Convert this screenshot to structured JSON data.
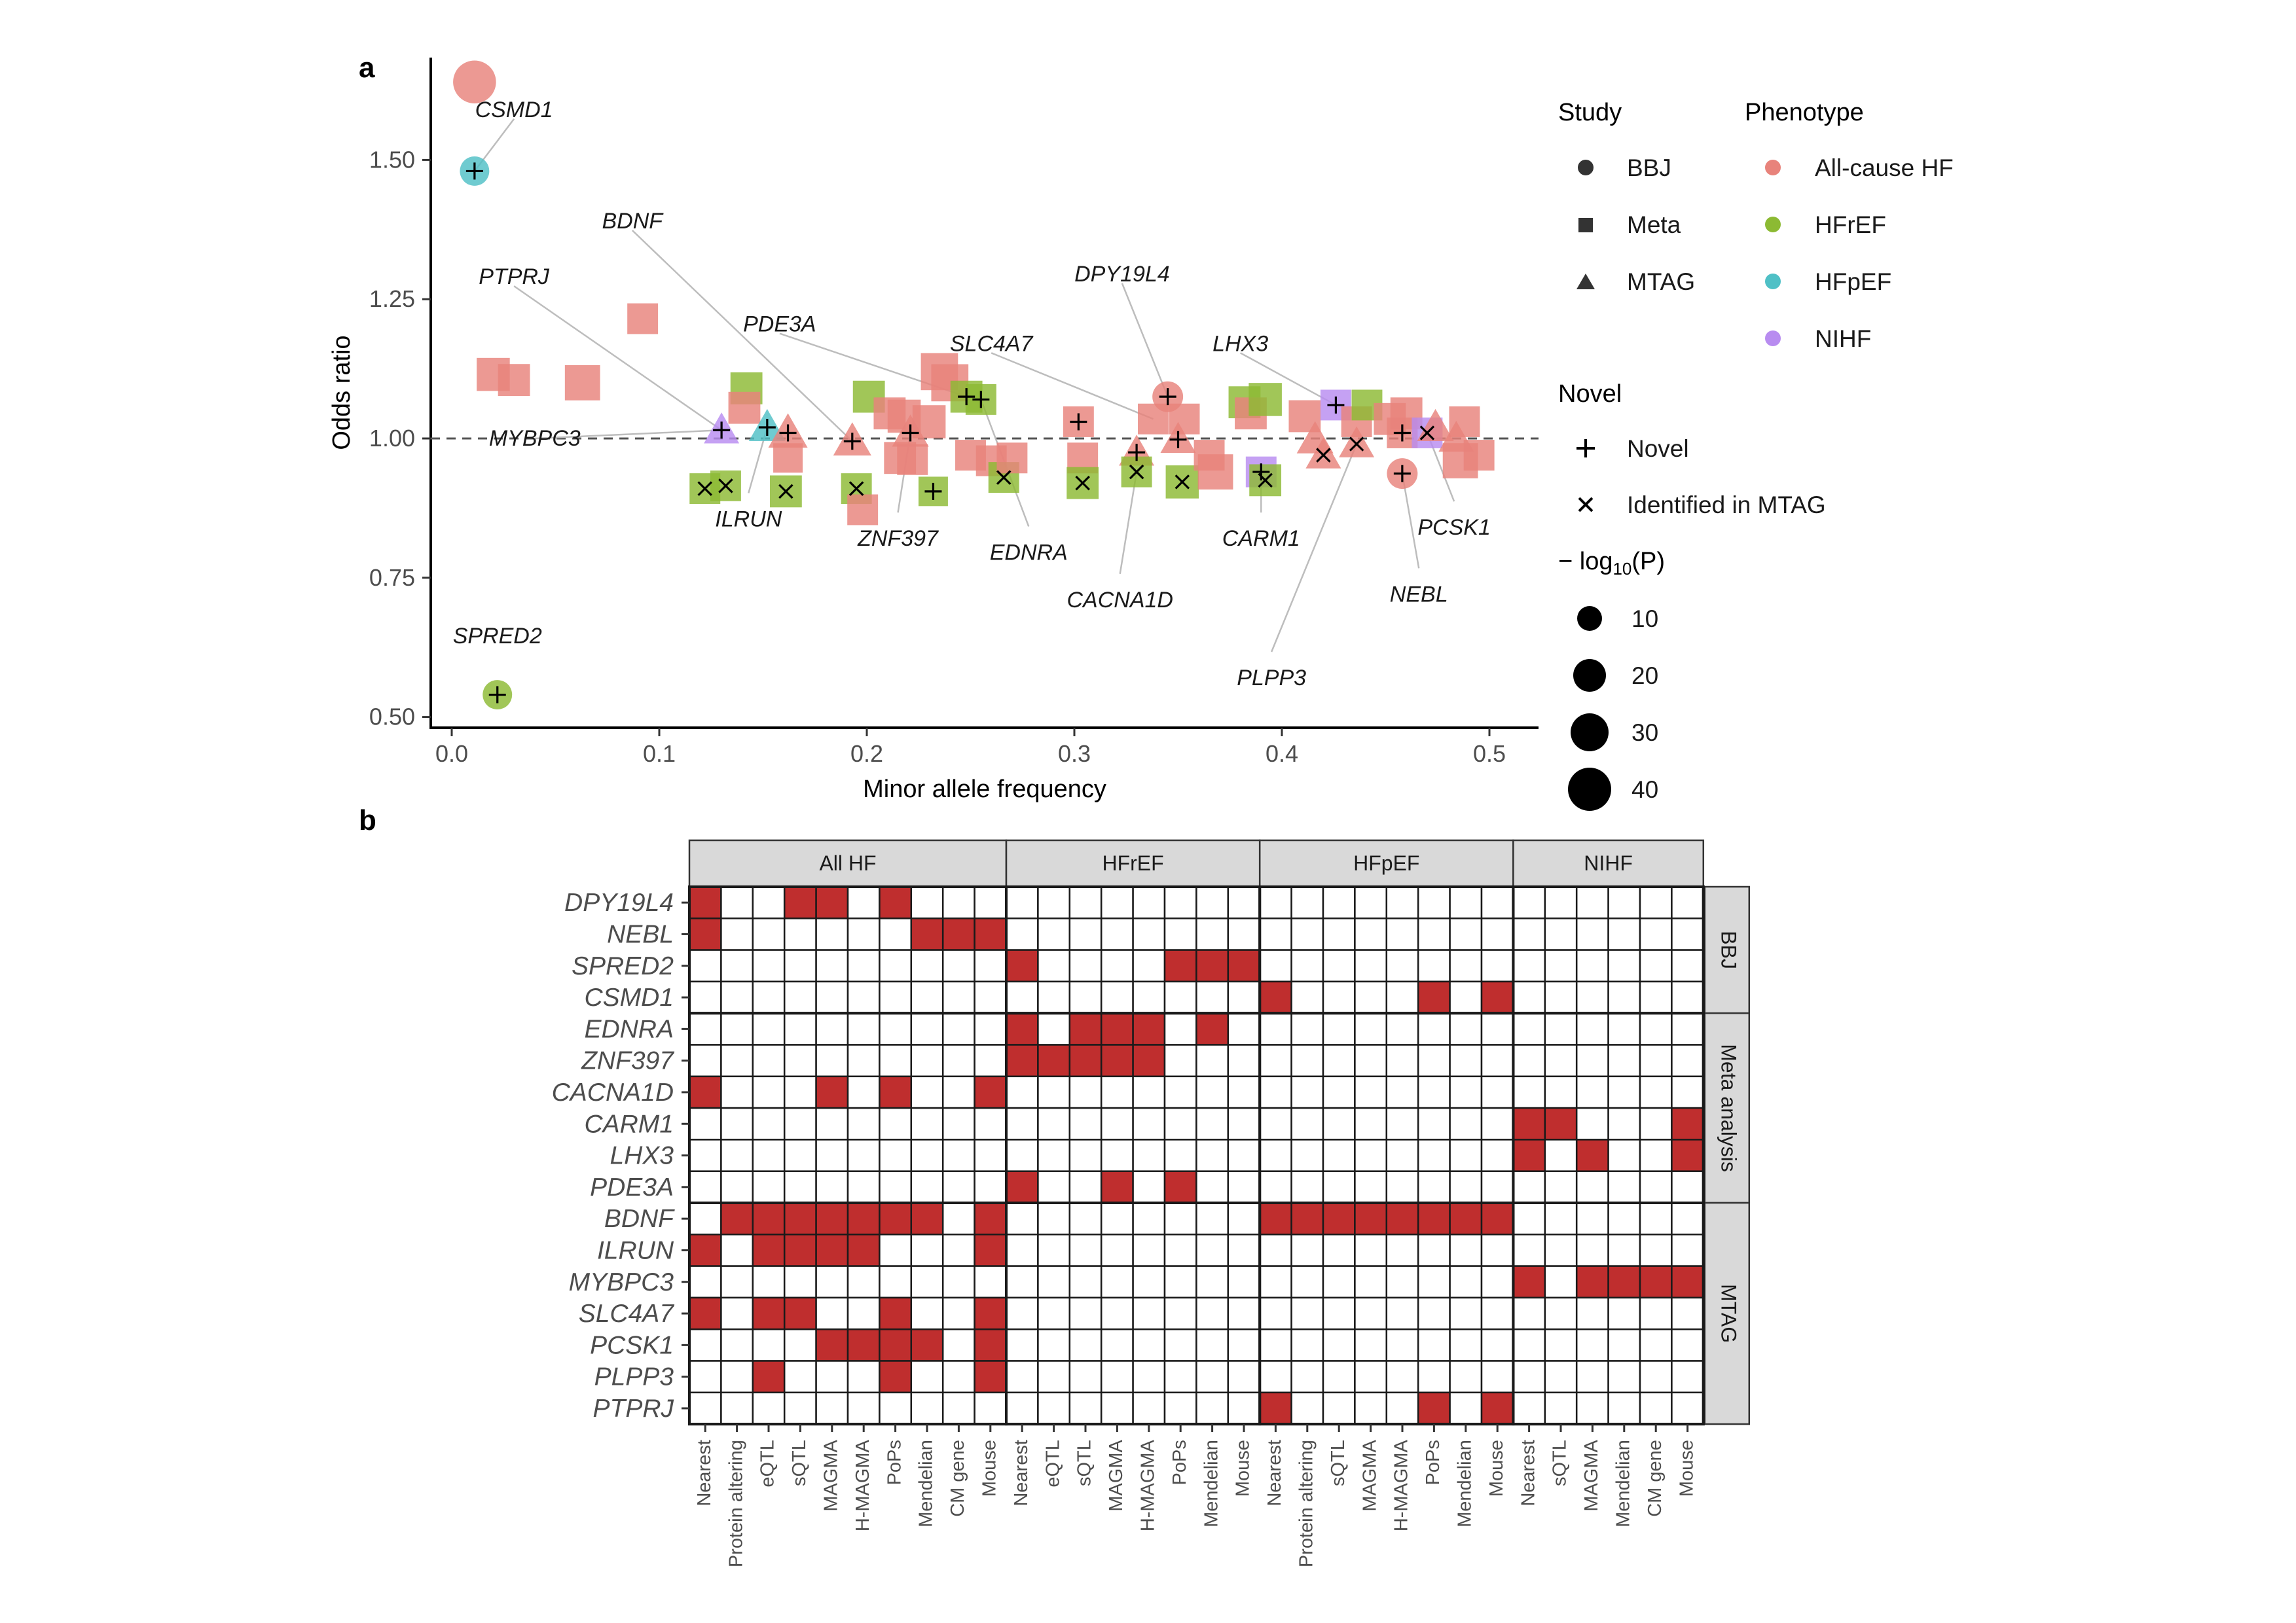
{
  "colors": {
    "all_cause_hf": "#e8837b",
    "hfref": "#8cba33",
    "hfpef": "#4fc0c6",
    "nihf": "#b88cf0",
    "heat_on": "#bf2e2e",
    "strip_bg": "#d9d9d9"
  },
  "panel_a": {
    "label": "a",
    "chart_data": {
      "type": "scatter",
      "xlabel": "Minor allele frequency",
      "ylabel": "Odds ratio",
      "xlim": [
        -0.01,
        0.52
      ],
      "ylim": [
        0.48,
        1.68
      ],
      "xticks": [
        "0.0",
        "0.1",
        "0.2",
        "0.3",
        "0.4",
        "0.5"
      ],
      "yticks": [
        "0.50",
        "0.75",
        "1.00",
        "1.25",
        "1.50"
      ],
      "reference_line": 1.0,
      "grid": false,
      "legend_position": "right",
      "points": [
        {
          "x": 0.011,
          "y": 1.64,
          "study": "BBJ",
          "ph": "All-cause HF",
          "p": 40
        },
        {
          "x": 0.011,
          "y": 1.48,
          "study": "BBJ",
          "ph": "HFpEF",
          "p": 12,
          "mark": "plus",
          "gene": "CSMD1"
        },
        {
          "x": 0.022,
          "y": 0.54,
          "study": "BBJ",
          "ph": "HFrEF",
          "p": 12,
          "mark": "plus",
          "gene": "SPRED2"
        },
        {
          "x": 0.02,
          "y": 1.115,
          "study": "Meta",
          "ph": "All-cause HF",
          "p": 18
        },
        {
          "x": 0.03,
          "y": 1.105,
          "study": "Meta",
          "ph": "All-cause HF",
          "p": 16
        },
        {
          "x": 0.063,
          "y": 1.1,
          "study": "Meta",
          "ph": "All-cause HF",
          "p": 22
        },
        {
          "x": 0.092,
          "y": 1.215,
          "study": "Meta",
          "ph": "All-cause HF",
          "p": 14
        },
        {
          "x": 0.13,
          "y": 1.015,
          "study": "MTAG",
          "ph": "NIHF",
          "p": 14,
          "mark": "plus"
        },
        {
          "x": 0.122,
          "y": 0.91,
          "study": "Meta",
          "ph": "HFrEF",
          "p": 14,
          "mark": "cross"
        },
        {
          "x": 0.132,
          "y": 0.915,
          "study": "Meta",
          "ph": "HFrEF",
          "p": 14,
          "mark": "cross"
        },
        {
          "x": 0.142,
          "y": 1.09,
          "study": "Meta",
          "ph": "HFrEF",
          "p": 16
        },
        {
          "x": 0.141,
          "y": 1.055,
          "study": "Meta",
          "ph": "All-cause HF",
          "p": 16
        },
        {
          "x": 0.152,
          "y": 1.02,
          "study": "MTAG",
          "ph": "HFpEF",
          "p": 16,
          "mark": "plus"
        },
        {
          "x": 0.162,
          "y": 1.01,
          "study": "MTAG",
          "ph": "All-cause HF",
          "p": 20,
          "mark": "plus"
        },
        {
          "x": 0.161,
          "y": 0.905,
          "study": "Meta",
          "ph": "HFrEF",
          "p": 16,
          "mark": "cross"
        },
        {
          "x": 0.162,
          "y": 0.965,
          "study": "Meta",
          "ph": "All-cause HF",
          "p": 12
        },
        {
          "x": 0.193,
          "y": 0.995,
          "study": "MTAG",
          "ph": "All-cause HF",
          "p": 18,
          "mark": "plus"
        },
        {
          "x": 0.195,
          "y": 0.91,
          "study": "Meta",
          "ph": "HFrEF",
          "p": 14,
          "mark": "cross"
        },
        {
          "x": 0.198,
          "y": 0.872,
          "study": "Meta",
          "ph": "All-cause HF",
          "p": 14
        },
        {
          "x": 0.201,
          "y": 1.075,
          "study": "Meta",
          "ph": "HFrEF",
          "p": 16
        },
        {
          "x": 0.211,
          "y": 1.045,
          "study": "Meta",
          "ph": "All-cause HF",
          "p": 16
        },
        {
          "x": 0.218,
          "y": 1.04,
          "study": "Meta",
          "ph": "All-cause HF",
          "p": 18
        },
        {
          "x": 0.221,
          "y": 1.01,
          "study": "MTAG",
          "ph": "All-cause HF",
          "p": 16,
          "mark": "plus"
        },
        {
          "x": 0.216,
          "y": 0.965,
          "study": "Meta",
          "ph": "All-cause HF",
          "p": 16
        },
        {
          "x": 0.222,
          "y": 0.962,
          "study": "Meta",
          "ph": "All-cause HF",
          "p": 14
        },
        {
          "x": 0.23,
          "y": 1.03,
          "study": "Meta",
          "ph": "All-cause HF",
          "p": 18
        },
        {
          "x": 0.235,
          "y": 1.12,
          "study": "Meta",
          "ph": "All-cause HF",
          "p": 26
        },
        {
          "x": 0.24,
          "y": 1.1,
          "study": "Meta",
          "ph": "All-cause HF",
          "p": 26
        },
        {
          "x": 0.232,
          "y": 0.905,
          "study": "Meta",
          "ph": "HFrEF",
          "p": 12,
          "mark": "plus"
        },
        {
          "x": 0.248,
          "y": 1.075,
          "study": "Meta",
          "ph": "HFrEF",
          "p": 16,
          "mark": "plus"
        },
        {
          "x": 0.255,
          "y": 1.07,
          "study": "Meta",
          "ph": "HFrEF",
          "p": 14,
          "mark": "plus"
        },
        {
          "x": 0.25,
          "y": 0.97,
          "study": "Meta",
          "ph": "All-cause HF",
          "p": 14
        },
        {
          "x": 0.26,
          "y": 0.96,
          "study": "Meta",
          "ph": "All-cause HF",
          "p": 14
        },
        {
          "x": 0.266,
          "y": 0.93,
          "study": "Meta",
          "ph": "HFrEF",
          "p": 14,
          "mark": "cross"
        },
        {
          "x": 0.27,
          "y": 0.965,
          "study": "Meta",
          "ph": "All-cause HF",
          "p": 14
        },
        {
          "x": 0.302,
          "y": 1.03,
          "study": "Meta",
          "ph": "All-cause HF",
          "p": 14,
          "mark": "plus"
        },
        {
          "x": 0.304,
          "y": 0.965,
          "study": "Meta",
          "ph": "All-cause HF",
          "p": 14
        },
        {
          "x": 0.304,
          "y": 0.92,
          "study": "Meta",
          "ph": "HFrEF",
          "p": 16,
          "mark": "cross"
        },
        {
          "x": 0.33,
          "y": 0.975,
          "study": "MTAG",
          "ph": "All-cause HF",
          "p": 14,
          "mark": "plus"
        },
        {
          "x": 0.33,
          "y": 0.94,
          "study": "Meta",
          "ph": "HFrEF",
          "p": 14,
          "mark": "cross"
        },
        {
          "x": 0.338,
          "y": 1.035,
          "study": "Meta",
          "ph": "All-cause HF",
          "p": 14
        },
        {
          "x": 0.345,
          "y": 1.075,
          "study": "BBJ",
          "ph": "All-cause HF",
          "p": 14,
          "mark": "plus"
        },
        {
          "x": 0.35,
          "y": 0.998,
          "study": "MTAG",
          "ph": "All-cause HF",
          "p": 14,
          "mark": "plus"
        },
        {
          "x": 0.352,
          "y": 0.922,
          "study": "Meta",
          "ph": "HFrEF",
          "p": 18,
          "mark": "cross"
        },
        {
          "x": 0.353,
          "y": 1.035,
          "study": "Meta",
          "ph": "All-cause HF",
          "p": 14
        },
        {
          "x": 0.365,
          "y": 0.97,
          "study": "Meta",
          "ph": "All-cause HF",
          "p": 14
        },
        {
          "x": 0.368,
          "y": 0.94,
          "study": "Meta",
          "ph": "All-cause HF",
          "p": 22
        },
        {
          "x": 0.382,
          "y": 1.065,
          "study": "Meta",
          "ph": "HFrEF",
          "p": 16
        },
        {
          "x": 0.385,
          "y": 1.045,
          "study": "Meta",
          "ph": "All-cause HF",
          "p": 16
        },
        {
          "x": 0.392,
          "y": 1.07,
          "study": "Meta",
          "ph": "HFrEF",
          "p": 18
        },
        {
          "x": 0.39,
          "y": 0.94,
          "study": "Meta",
          "ph": "NIHF",
          "p": 14,
          "mark": "plus"
        },
        {
          "x": 0.392,
          "y": 0.925,
          "study": "Meta",
          "ph": "HFrEF",
          "p": 16,
          "mark": "cross"
        },
        {
          "x": 0.411,
          "y": 1.04,
          "study": "Meta",
          "ph": "All-cause HF",
          "p": 16
        },
        {
          "x": 0.416,
          "y": 0.998,
          "study": "MTAG",
          "ph": "All-cause HF",
          "p": 16
        },
        {
          "x": 0.42,
          "y": 0.97,
          "study": "MTAG",
          "ph": "All-cause HF",
          "p": 14,
          "mark": "cross"
        },
        {
          "x": 0.426,
          "y": 1.06,
          "study": "Meta",
          "ph": "NIHF",
          "p": 14,
          "mark": "plus"
        },
        {
          "x": 0.436,
          "y": 1.03,
          "study": "Meta",
          "ph": "All-cause HF",
          "p": 14
        },
        {
          "x": 0.436,
          "y": 0.99,
          "study": "MTAG",
          "ph": "All-cause HF",
          "p": 14,
          "mark": "cross"
        },
        {
          "x": 0.441,
          "y": 1.06,
          "study": "Meta",
          "ph": "HFrEF",
          "p": 14
        },
        {
          "x": 0.452,
          "y": 1.035,
          "study": "Meta",
          "ph": "All-cause HF",
          "p": 16
        },
        {
          "x": 0.458,
          "y": 1.01,
          "study": "Meta",
          "ph": "All-cause HF",
          "p": 14,
          "mark": "plus"
        },
        {
          "x": 0.46,
          "y": 1.045,
          "study": "Meta",
          "ph": "All-cause HF",
          "p": 16
        },
        {
          "x": 0.458,
          "y": 0.937,
          "study": "BBJ",
          "ph": "All-cause HF",
          "p": 14,
          "mark": "plus"
        },
        {
          "x": 0.47,
          "y": 1.01,
          "study": "Meta",
          "ph": "NIHF",
          "p": 14,
          "mark": "cross"
        },
        {
          "x": 0.474,
          "y": 1.02,
          "study": "MTAG",
          "ph": "All-cause HF",
          "p": 16
        },
        {
          "x": 0.484,
          "y": 1.0,
          "study": "MTAG",
          "ph": "All-cause HF",
          "p": 14
        },
        {
          "x": 0.486,
          "y": 0.96,
          "study": "Meta",
          "ph": "All-cause HF",
          "p": 22
        },
        {
          "x": 0.488,
          "y": 1.03,
          "study": "Meta",
          "ph": "All-cause HF",
          "p": 14
        },
        {
          "x": 0.495,
          "y": 0.97,
          "study": "Meta",
          "ph": "All-cause HF",
          "p": 14
        }
      ],
      "annotations": [
        {
          "text": "CSMD1",
          "x": 0.03,
          "y": 1.59,
          "px": 0.011,
          "py": 1.48,
          "line": true
        },
        {
          "text": "BDNF",
          "x": 0.087,
          "y": 1.39,
          "px": 0.193,
          "py": 0.995,
          "line": true
        },
        {
          "text": "PTPRJ",
          "x": 0.03,
          "y": 1.29,
          "px": 0.13,
          "py": 1.015,
          "line": true
        },
        {
          "text": "PDE3A",
          "x": 0.158,
          "y": 1.205,
          "px": 0.248,
          "py": 1.075,
          "line": true
        },
        {
          "text": "SLC4A7",
          "x": 0.26,
          "y": 1.17,
          "px": 0.338,
          "py": 1.035,
          "line": true
        },
        {
          "text": "DPY19L4",
          "x": 0.323,
          "y": 1.295,
          "px": 0.345,
          "py": 1.075,
          "line": true
        },
        {
          "text": "LHX3",
          "x": 0.38,
          "y": 1.17,
          "px": 0.426,
          "py": 1.06,
          "line": true
        },
        {
          "text": "MYBPC3",
          "x": 0.04,
          "y": 1.0,
          "px": 0.13,
          "py": 1.015,
          "line": true
        },
        {
          "text": "ILRUN",
          "x": 0.143,
          "y": 0.855,
          "px": 0.152,
          "py": 1.02,
          "line": true
        },
        {
          "text": "ZNF397",
          "x": 0.215,
          "y": 0.82,
          "px": 0.221,
          "py": 1.01,
          "line": true
        },
        {
          "text": "EDNRA",
          "x": 0.278,
          "y": 0.795,
          "px": 0.255,
          "py": 1.07,
          "line": true
        },
        {
          "text": "CACNA1D",
          "x": 0.322,
          "y": 0.71,
          "px": 0.33,
          "py": 0.94,
          "line": true
        },
        {
          "text": "CARM1",
          "x": 0.39,
          "y": 0.82,
          "px": 0.39,
          "py": 0.94,
          "line": true
        },
        {
          "text": "PLPP3",
          "x": 0.395,
          "y": 0.57,
          "px": 0.436,
          "py": 0.99,
          "line": true
        },
        {
          "text": "NEBL",
          "x": 0.466,
          "y": 0.72,
          "px": 0.458,
          "py": 0.937,
          "line": true
        },
        {
          "text": "PCSK1",
          "x": 0.483,
          "y": 0.84,
          "px": 0.47,
          "py": 1.01,
          "line": true
        },
        {
          "text": "SPRED2",
          "x": 0.022,
          "y": 0.645,
          "px": 0.022,
          "py": 0.54,
          "line": false
        }
      ]
    },
    "legend": {
      "study_title": "Study",
      "study_items": [
        "BBJ",
        "Meta",
        "MTAG"
      ],
      "phenotype_title": "Phenotype",
      "phenotype_items": [
        "All-cause HF",
        "HFrEF",
        "HFpEF",
        "NIHF"
      ],
      "novel_title": "Novel",
      "novel_items": [
        "Novel",
        "Identified in MTAG"
      ],
      "size_title_pre": "− log",
      "size_title_sub": "10",
      "size_title_post": "(P)",
      "size_items": [
        "10",
        "20",
        "30",
        "40"
      ]
    }
  },
  "panel_b": {
    "label": "b",
    "chart_data": {
      "type": "heatmap",
      "facets": [
        {
          "name": "All HF",
          "columns": [
            "Nearest",
            "Protein altering",
            "eQTL",
            "sQTL",
            "MAGMA",
            "H-MAGMA",
            "PoPs",
            "Mendelian",
            "CM gene",
            "Mouse"
          ]
        },
        {
          "name": "HFrEF",
          "columns": [
            "Nearest",
            "eQTL",
            "sQTL",
            "MAGMA",
            "H-MAGMA",
            "PoPs",
            "Mendelian",
            "Mouse"
          ]
        },
        {
          "name": "HFpEF",
          "columns": [
            "Nearest",
            "Protein altering",
            "sQTL",
            "MAGMA",
            "H-MAGMA",
            "PoPs",
            "Mendelian",
            "Mouse"
          ]
        },
        {
          "name": "NIHF",
          "columns": [
            "Nearest",
            "sQTL",
            "MAGMA",
            "Mendelian",
            "CM gene",
            "Mouse"
          ]
        }
      ],
      "row_groups": [
        {
          "name": "BBJ",
          "rows": [
            "DPY19L4",
            "NEBL",
            "SPRED2",
            "CSMD1"
          ]
        },
        {
          "name": "Meta analysis",
          "rows": [
            "EDNRA",
            "ZNF397",
            "CACNA1D",
            "CARM1",
            "LHX3",
            "PDE3A"
          ]
        },
        {
          "name": "MTAG",
          "rows": [
            "BDNF",
            "ILRUN",
            "MYBPC3",
            "SLC4A7",
            "PCSK1",
            "PLPP3",
            "PTPRJ"
          ]
        }
      ],
      "cells": [
        "10011010000000000000000000000000",
        "10000001110000000000000000000000",
        "00000000001000011100000000000000",
        "00000000000000000010000101000000",
        "00000000001011101000000000000000",
        "00000000001111100000000000000000",
        "10001010010000000000000000000000",
        "00000000000000000000000000110001",
        "00000000000000000000000000101001",
        "00000000001001010000000000000000",
        "01111111010000000011111111000000",
        "10111100010000000000000000000000",
        "00000000000000000000000000101111",
        "10110010010000000000000000000000",
        "00001111010000000000000000000000",
        "00100010010000000000000000000000",
        "00000000000000000010000101000000"
      ]
    }
  }
}
